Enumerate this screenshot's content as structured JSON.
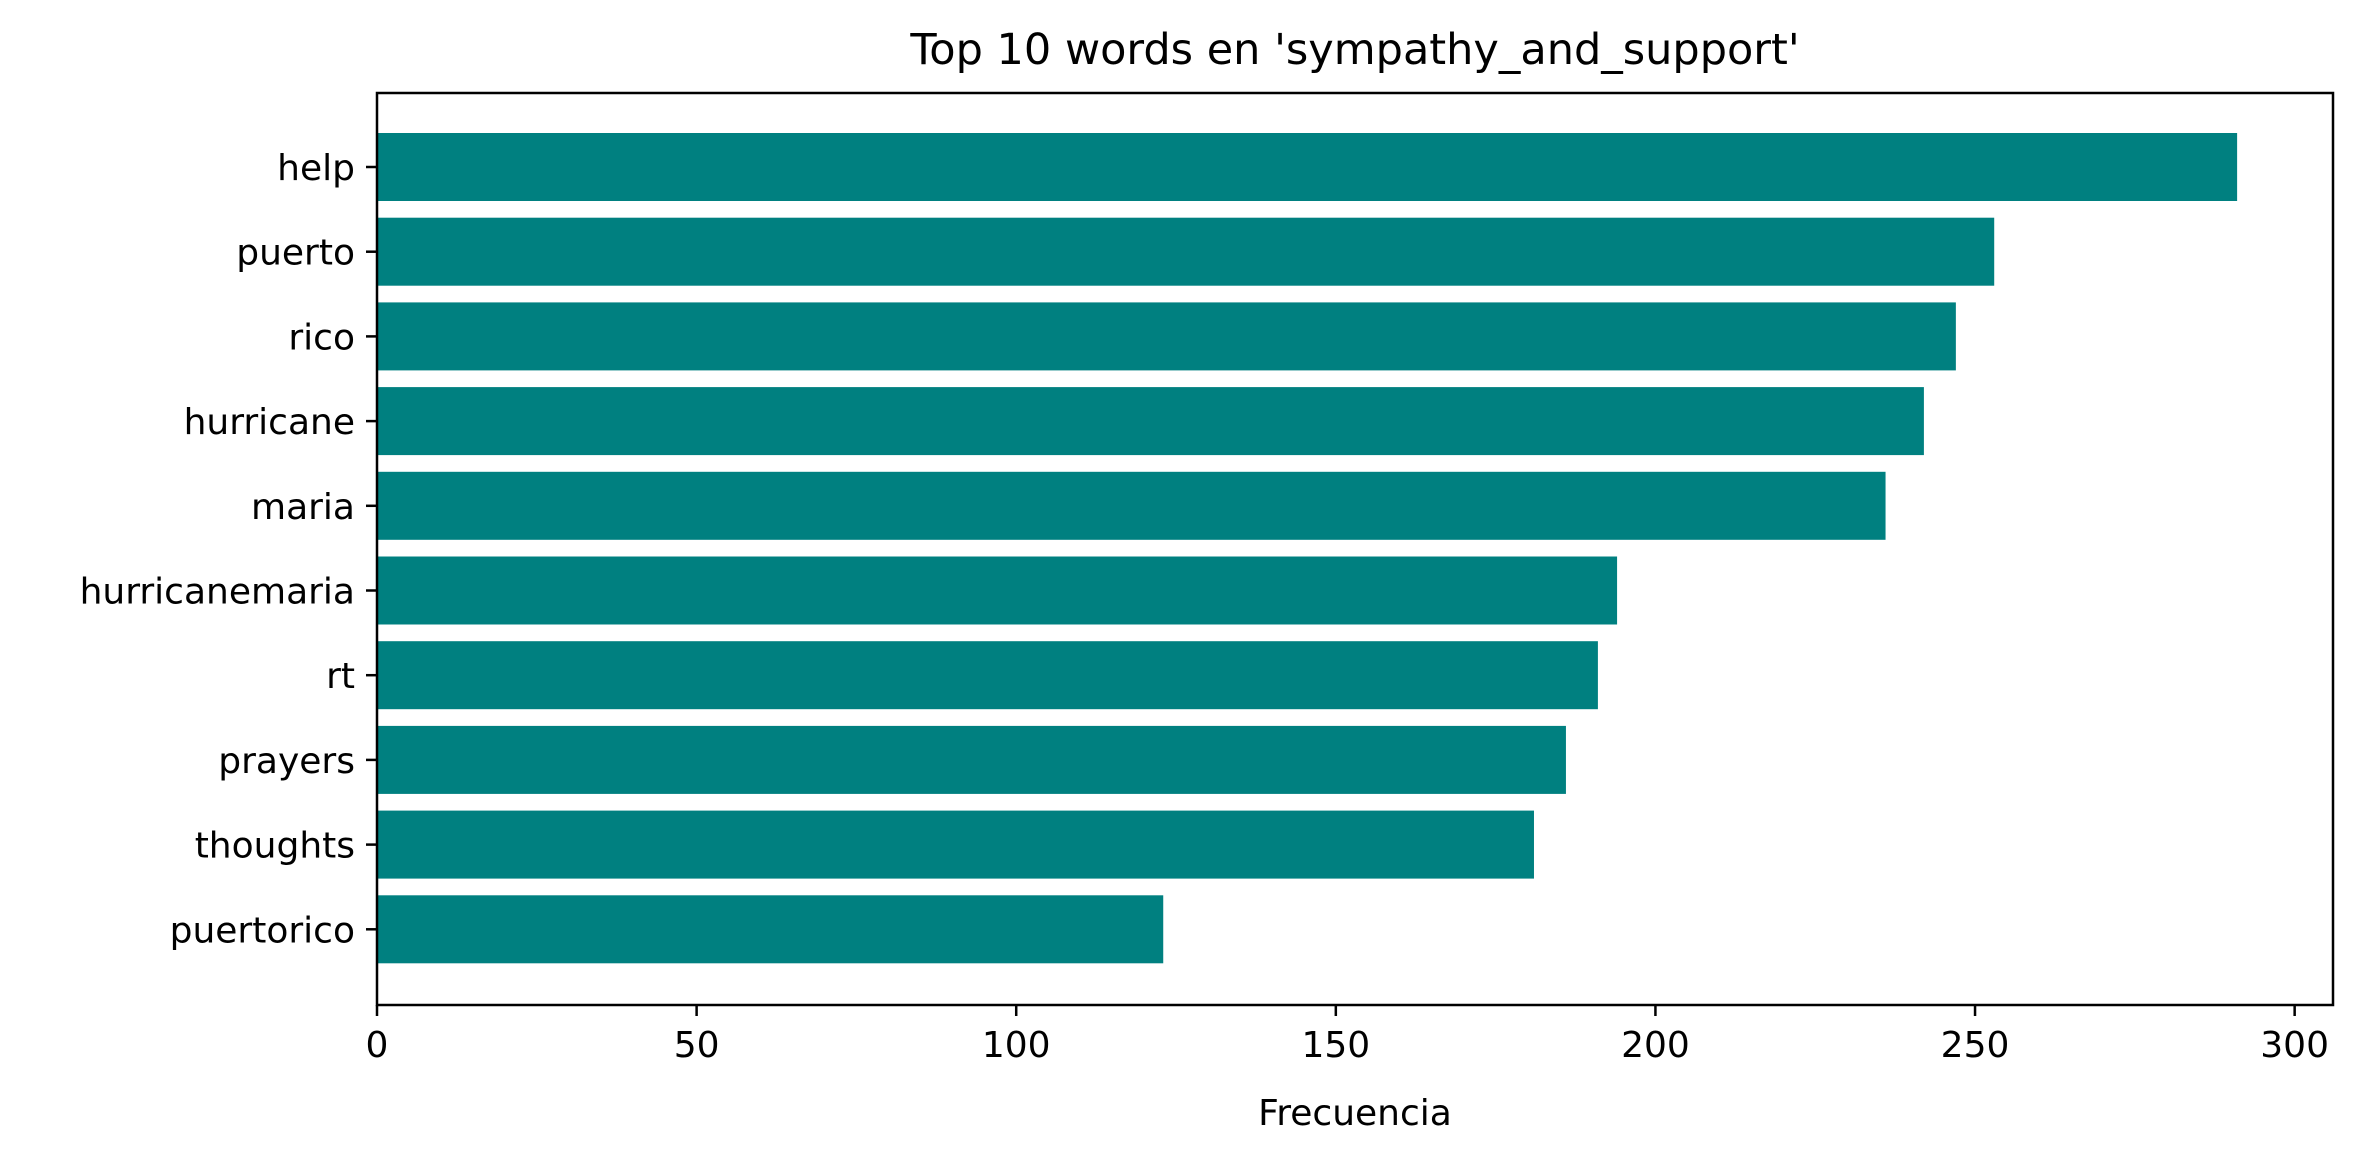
{
  "chart_data": {
    "type": "bar",
    "orientation": "horizontal",
    "title": "Top 10 words en 'sympathy_and_support'",
    "xlabel": "Frecuencia",
    "ylabel": "",
    "categories": [
      "help",
      "puerto",
      "rico",
      "hurricane",
      "maria",
      "hurricanemaria",
      "rt",
      "prayers",
      "thoughts",
      "puertorico"
    ],
    "values": [
      291,
      253,
      247,
      242,
      236,
      194,
      191,
      186,
      181,
      123
    ],
    "xlim": [
      0,
      306
    ],
    "xticks": [
      0,
      50,
      100,
      150,
      200,
      250,
      300
    ],
    "bar_color": "#008080",
    "grid": false,
    "legend": "none"
  }
}
